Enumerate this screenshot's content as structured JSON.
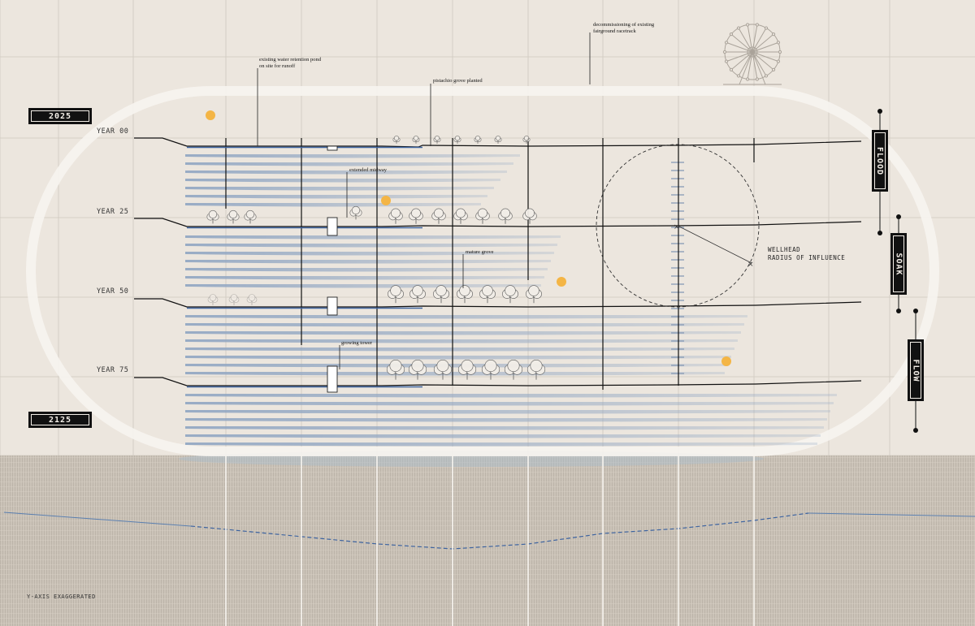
{
  "timeline": {
    "start_year": "2025",
    "end_year": "2125"
  },
  "rows": [
    {
      "label": "YEAR 00"
    },
    {
      "label": "YEAR 25"
    },
    {
      "label": "YEAR 50"
    },
    {
      "label": "YEAR 75"
    }
  ],
  "phases": [
    "FLOOD",
    "SOAK",
    "FLOW"
  ],
  "annotations": {
    "retention_pond": "existing water retention pond on site for runoff",
    "pistachio": "pistachio grove planted",
    "racetrack": "decommissioning of existing fairground racetrack",
    "midway": "extended midway",
    "mature_grove": "mature grove",
    "growing_tower": "growing tower"
  },
  "wellhead": {
    "line1": "WELLHEAD",
    "line2": "RADIUS OF INFLUENCE"
  },
  "footer": {
    "yaxis_note": "Y-AXIS EXAGGERATED"
  },
  "colors": {
    "background": "#ece6de",
    "track": "#f7f4ef",
    "water": "#4a6f9e",
    "ink": "#111111",
    "sun": "#f4b545",
    "ground_section": "#c9c1b6"
  }
}
